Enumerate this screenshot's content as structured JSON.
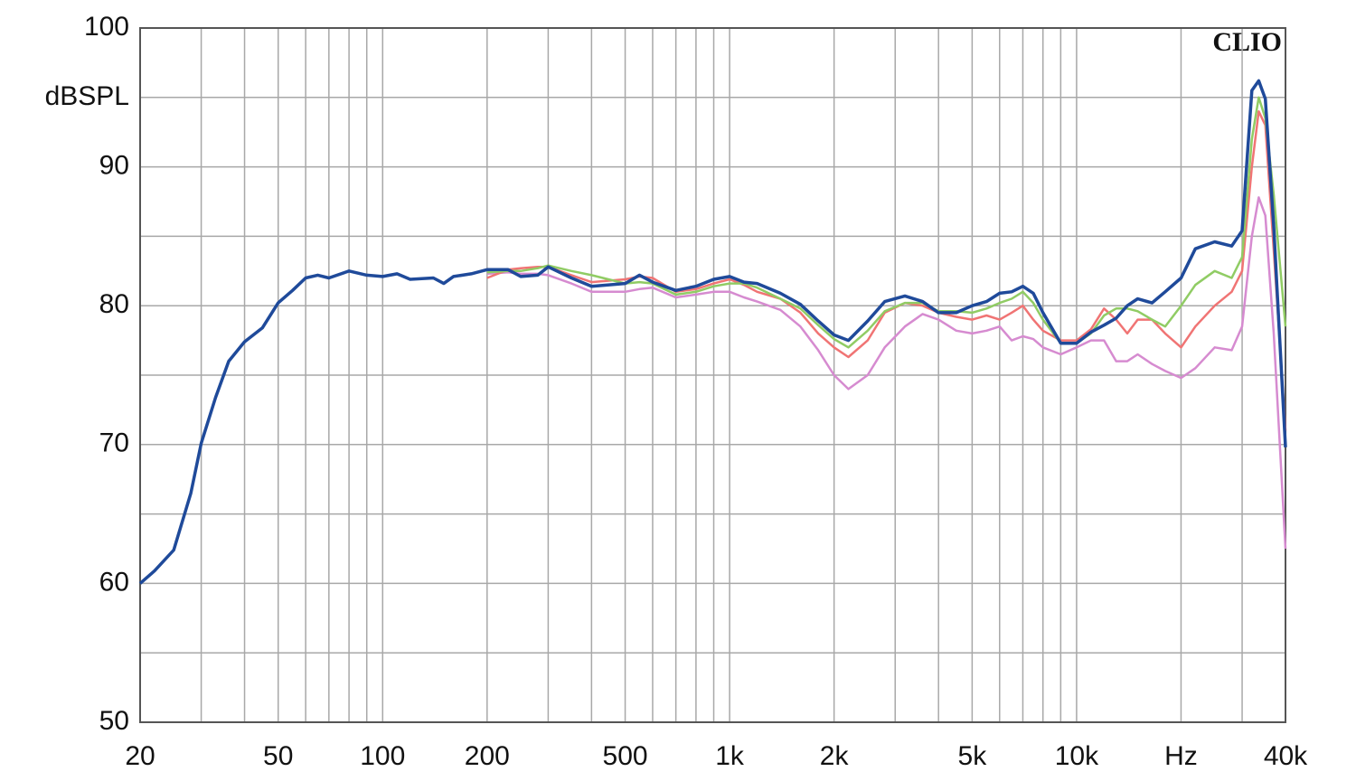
{
  "chart_data": {
    "type": "line",
    "annotation": "CLIO",
    "y_label": "dBSPL",
    "log_x": true,
    "grid": true,
    "xlim": [
      20,
      40000
    ],
    "ylim": [
      50,
      100
    ],
    "yticks": [
      50,
      60,
      70,
      80,
      90,
      100
    ],
    "xticks": [
      20,
      50,
      100,
      200,
      500,
      {
        "value": 1000,
        "label": "1k"
      },
      {
        "value": 2000,
        "label": "2k"
      },
      {
        "value": 5000,
        "label": "5k"
      },
      {
        "value": 10000,
        "label": "10k"
      },
      {
        "value": 20000,
        "label": "Hz"
      },
      {
        "value": 40000,
        "label": "40k"
      }
    ],
    "x_minor_grid": [
      30,
      40,
      60,
      70,
      80,
      90,
      300,
      400,
      600,
      700,
      800,
      900,
      3000,
      4000,
      6000,
      7000,
      8000,
      9000,
      30000
    ],
    "y_minor_grid": [
      55,
      65,
      75,
      85,
      95
    ],
    "x": [
      20,
      22,
      25,
      28,
      30,
      33,
      36,
      40,
      45,
      50,
      55,
      60,
      65,
      70,
      80,
      90,
      100,
      110,
      120,
      140,
      150,
      160,
      180,
      200,
      230,
      250,
      280,
      300,
      350,
      400,
      500,
      550,
      600,
      700,
      800,
      900,
      1000,
      1100,
      1200,
      1400,
      1600,
      1800,
      2000,
      2200,
      2500,
      2800,
      3200,
      3600,
      4000,
      4500,
      5000,
      5500,
      6000,
      6500,
      7000,
      7500,
      8000,
      9000,
      10000,
      11000,
      12000,
      13000,
      14000,
      15000,
      16500,
      18000,
      20000,
      22000,
      25000,
      28000,
      30000,
      32000,
      33500,
      35000,
      37000,
      40000
    ],
    "series": [
      {
        "color": "#d68bd0",
        "values": [
          null,
          null,
          null,
          null,
          null,
          null,
          null,
          null,
          null,
          null,
          null,
          null,
          null,
          null,
          null,
          null,
          null,
          null,
          null,
          null,
          null,
          null,
          null,
          82.3,
          82.4,
          82.3,
          82.3,
          82.2,
          81.6,
          81.0,
          81.0,
          81.2,
          81.3,
          80.6,
          80.8,
          81.0,
          81.0,
          80.6,
          80.3,
          79.7,
          78.5,
          76.8,
          75.0,
          74.0,
          75.0,
          77.0,
          78.5,
          79.4,
          79.0,
          78.2,
          78.0,
          78.2,
          78.5,
          77.5,
          77.8,
          77.6,
          77.0,
          76.5,
          77.0,
          77.5,
          77.5,
          76.0,
          76.0,
          76.5,
          75.8,
          75.3,
          74.8,
          75.5,
          77.0,
          76.8,
          78.5,
          85,
          87.8,
          86.5,
          78,
          62.5
        ]
      },
      {
        "color": "#f07474",
        "values": [
          null,
          null,
          null,
          null,
          null,
          null,
          null,
          null,
          null,
          null,
          null,
          null,
          null,
          null,
          null,
          null,
          null,
          null,
          null,
          null,
          null,
          null,
          null,
          82.0,
          82.6,
          82.7,
          82.8,
          82.8,
          82.2,
          81.7,
          81.9,
          82.1,
          82.0,
          81.0,
          81.2,
          81.6,
          81.9,
          81.5,
          81.0,
          80.5,
          79.5,
          78.0,
          77.0,
          76.3,
          77.5,
          79.5,
          80.2,
          80.0,
          79.5,
          79.2,
          79.0,
          79.3,
          79.0,
          79.5,
          80.0,
          79.0,
          78.2,
          77.5,
          77.5,
          78.3,
          79.8,
          79.0,
          78.0,
          79.0,
          79.0,
          78.0,
          77.0,
          78.5,
          80.0,
          81.0,
          82.5,
          90,
          94,
          93,
          84,
          71.0
        ]
      },
      {
        "color": "#90cc64",
        "values": [
          null,
          null,
          null,
          null,
          null,
          null,
          null,
          null,
          null,
          null,
          null,
          null,
          null,
          null,
          null,
          null,
          null,
          null,
          null,
          null,
          null,
          null,
          null,
          82.4,
          82.5,
          82.5,
          82.7,
          82.9,
          82.5,
          82.2,
          81.6,
          81.7,
          81.6,
          80.8,
          81.0,
          81.4,
          81.6,
          81.6,
          81.3,
          80.5,
          79.8,
          78.6,
          77.6,
          77.0,
          78.2,
          79.6,
          80.2,
          80.2,
          79.6,
          79.6,
          79.5,
          79.8,
          80.2,
          80.5,
          81.0,
          80.2,
          79.0,
          77.3,
          77.3,
          78.0,
          79.3,
          79.8,
          79.8,
          79.6,
          79.0,
          78.5,
          80.0,
          81.5,
          82.5,
          82.0,
          83.5,
          92,
          95,
          93.5,
          88,
          78.5
        ]
      },
      {
        "color": "#1f4a9a",
        "values": [
          60.0,
          60.9,
          62.4,
          66.5,
          70.1,
          73.4,
          76.0,
          77.4,
          78.4,
          80.2,
          81.1,
          82.0,
          82.2,
          82.0,
          82.5,
          82.2,
          82.1,
          82.3,
          81.9,
          82.0,
          81.6,
          82.1,
          82.3,
          82.6,
          82.6,
          82.1,
          82.2,
          82.8,
          82.0,
          81.4,
          81.6,
          82.2,
          81.7,
          81.1,
          81.4,
          81.9,
          82.1,
          81.7,
          81.6,
          80.9,
          80.1,
          78.9,
          77.9,
          77.5,
          78.9,
          80.3,
          80.7,
          80.3,
          79.5,
          79.5,
          80.0,
          80.3,
          80.9,
          81.0,
          81.4,
          80.9,
          79.5,
          77.3,
          77.3,
          78.1,
          78.6,
          79.1,
          80.0,
          80.5,
          80.2,
          81.0,
          82.0,
          84.1,
          84.6,
          84.3,
          85.4,
          95.5,
          96.2,
          94.9,
          85.7,
          69.8
        ]
      }
    ]
  }
}
